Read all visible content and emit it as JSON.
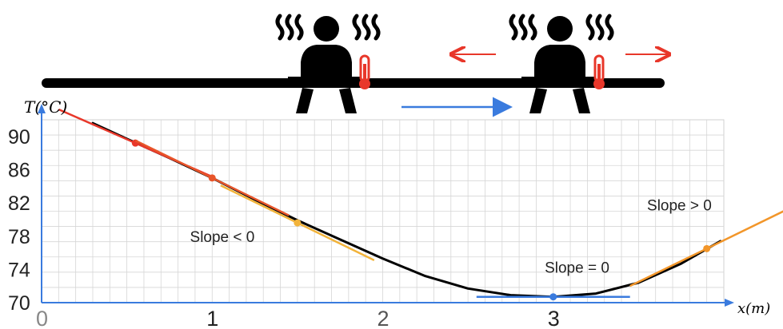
{
  "chart_data": {
    "type": "line",
    "title": "",
    "xlabel": "x(m)",
    "ylabel": "T(°C)",
    "x_ticks": [
      "0",
      "1",
      "2",
      "3"
    ],
    "y_ticks": [
      "90",
      "86",
      "82",
      "78",
      "74",
      "70"
    ],
    "xlim": [
      0,
      4.0
    ],
    "ylim": [
      70,
      92
    ],
    "grid": true,
    "series": [
      {
        "x": [
          0.3,
          0.5,
          0.75,
          1.0,
          1.25,
          1.5,
          1.75,
          2.0,
          2.25,
          2.5,
          2.75,
          3.0,
          3.25,
          3.5,
          3.75,
          3.98
        ],
        "values": [
          91.6,
          89.7,
          87.4,
          85.0,
          82.4,
          79.9,
          77.6,
          75.3,
          73.2,
          71.7,
          70.9,
          70.7,
          71.1,
          72.4,
          74.7,
          77.4
        ]
      }
    ],
    "tangent_points": [
      {
        "x": 0.55,
        "y": 89.2,
        "color": "#e8372a",
        "slope": -9.0
      },
      {
        "x": 1.0,
        "y": 85.0,
        "color": "#e8552a",
        "slope": -10.0
      },
      {
        "x": 1.5,
        "y": 79.6,
        "color": "#f2b33a",
        "slope": -10.0
      },
      {
        "x": 3.0,
        "y": 70.7,
        "color": "#3a7bde",
        "slope": 0
      },
      {
        "x": 3.9,
        "y": 76.5,
        "color": "#f2962a",
        "slope": 10.0
      }
    ],
    "annotations": [
      {
        "text": "Slope < 0",
        "x": 0.87,
        "y": 77.3
      },
      {
        "text": "Slope = 0",
        "x": 2.95,
        "y": 73.6
      },
      {
        "text": "Slope > 0",
        "x": 3.55,
        "y": 81.1
      }
    ]
  },
  "illustration": {
    "icons": [
      "person-sitting-icon",
      "heat-waves-icon",
      "thermometer-icon"
    ],
    "arrow_colors": {
      "left": "#e8372a",
      "right": "#e8372a",
      "move": "#3a7bde"
    }
  }
}
